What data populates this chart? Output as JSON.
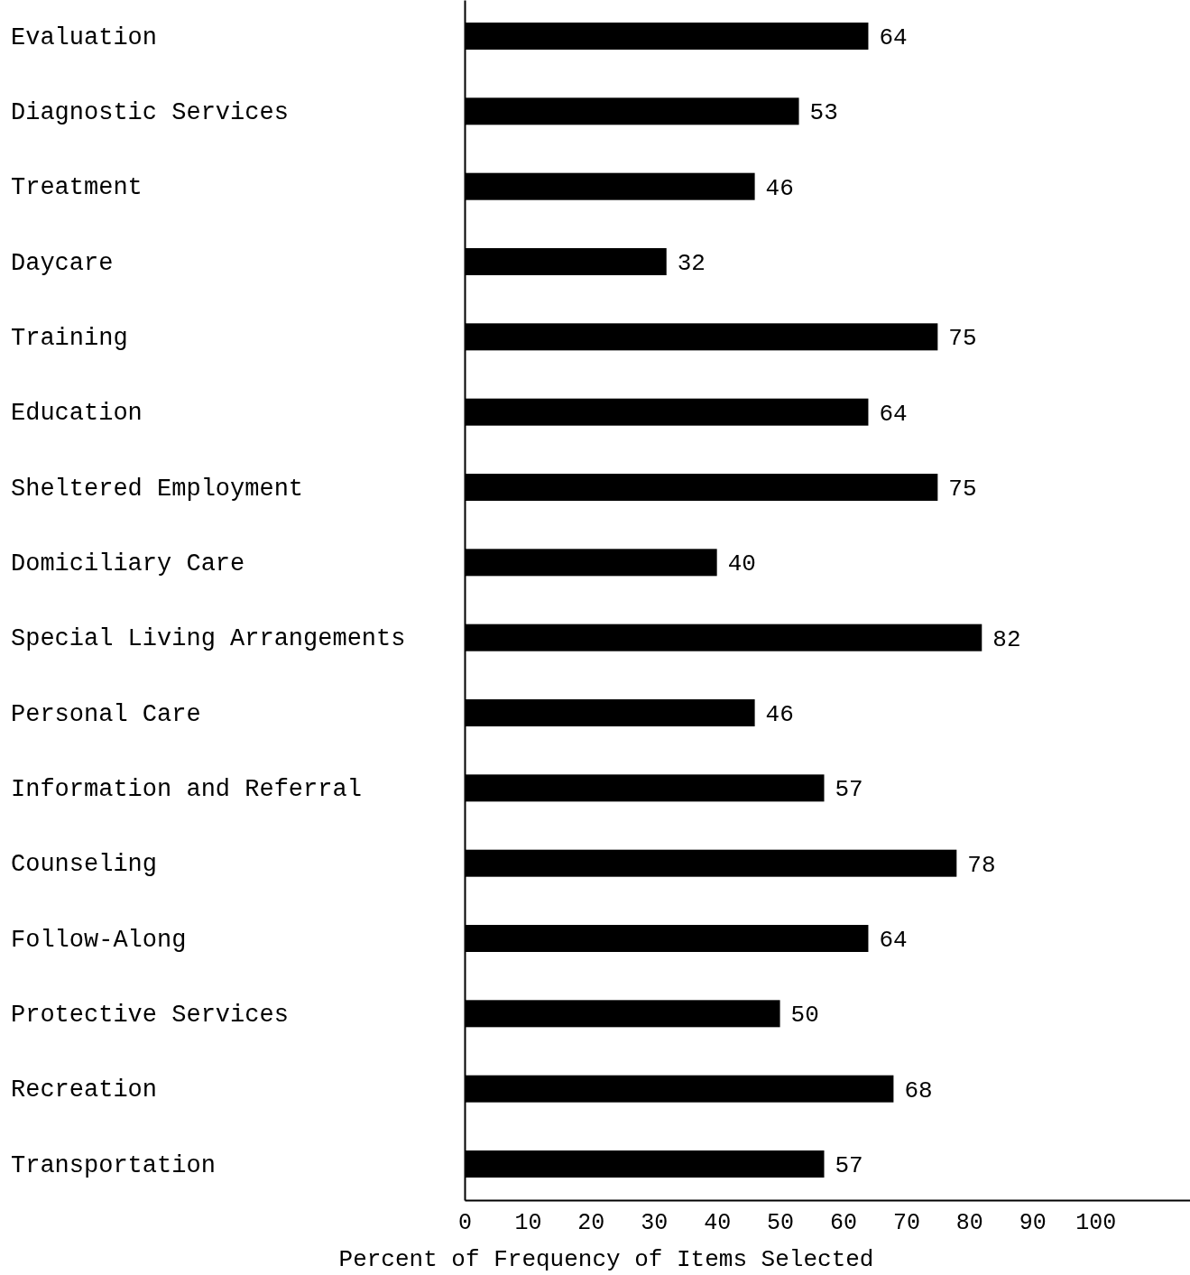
{
  "chart_data": {
    "type": "bar",
    "orientation": "horizontal",
    "xlabel": "Percent of Frequency of Items Selected",
    "categories": [
      "Evaluation",
      "Diagnostic Services",
      "Treatment",
      "Daycare",
      "Training",
      "Education",
      "Sheltered Employment",
      "Domiciliary Care",
      "Special Living Arrangements",
      "Personal Care",
      "Information and Referral",
      "Counseling",
      "Follow-Along",
      "Protective Services",
      "Recreation",
      "Transportation"
    ],
    "values": [
      64,
      53,
      46,
      32,
      75,
      64,
      75,
      40,
      82,
      46,
      57,
      78,
      64,
      50,
      68,
      57
    ],
    "color": "#000000",
    "data_labels": true,
    "xlim": [
      0,
      115
    ],
    "xticks": [
      0,
      10,
      20,
      30,
      40,
      50,
      60,
      70,
      80,
      90,
      100
    ],
    "grid": false
  }
}
